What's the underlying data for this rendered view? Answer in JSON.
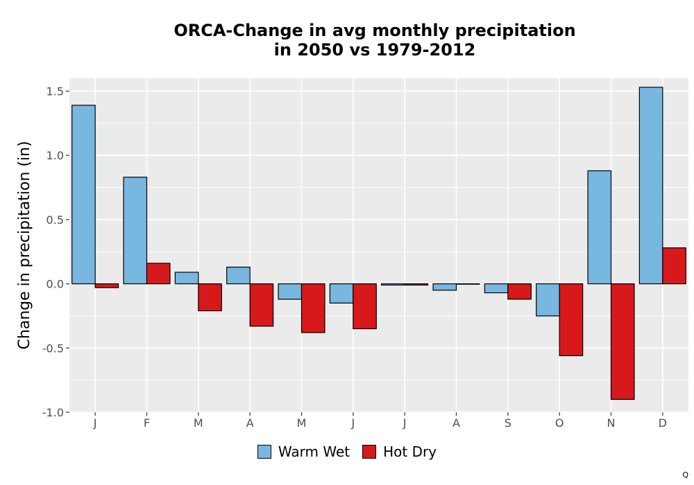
{
  "chart_data": {
    "type": "bar",
    "title": [
      "ORCA-Change in avg monthly precipitation",
      "in 2050 vs 1979-2012"
    ],
    "xlabel": "",
    "ylabel": "Change in precipitation (in)",
    "categories": [
      "J",
      "F",
      "M",
      "A",
      "M",
      "J",
      "J",
      "A",
      "S",
      "O",
      "N",
      "D"
    ],
    "series": [
      {
        "name": "Warm Wet",
        "color": "#78b7e0",
        "values": [
          1.39,
          0.83,
          0.09,
          0.13,
          -0.12,
          -0.15,
          -0.01,
          -0.05,
          -0.07,
          -0.25,
          0.88,
          1.53
        ]
      },
      {
        "name": "Hot Dry",
        "color": "#d7191c",
        "values": [
          -0.03,
          0.16,
          -0.21,
          -0.33,
          -0.38,
          -0.35,
          -0.01,
          0.0,
          -0.12,
          -0.56,
          -0.9,
          0.28
        ]
      }
    ],
    "ylim": [
      -1.0,
      1.6
    ],
    "yticks": [
      1.5,
      1.0,
      0.5,
      0.0,
      -0.5,
      -1.0
    ],
    "ytick_labels": [
      "1.5",
      "1.0",
      "0.5",
      "0.0",
      "-0.5",
      "-1.0"
    ],
    "grid": true,
    "panel_background": "#ebebeb",
    "legend_position": "bottom"
  },
  "footer": {
    "mark": "Q"
  }
}
